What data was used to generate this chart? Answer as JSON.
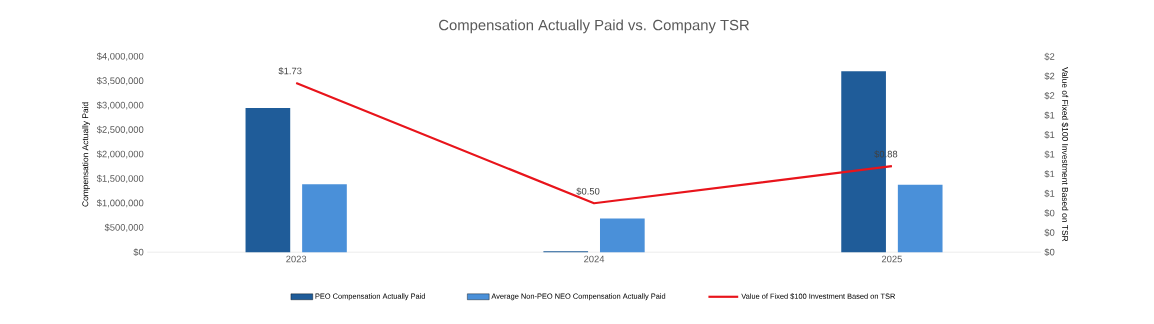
{
  "chart_data": {
    "type": "bar",
    "title": "Compensation Actually Paid vs. Company TSR",
    "ylabel": "Compensation Actually Paid",
    "y2label": "Value of Fixed $100 Investment Based on TSR",
    "categories": [
      "2023",
      "2024",
      "2025"
    ],
    "series": [
      {
        "name": "PEO Compensation Actually Paid",
        "color": "#1f5c99",
        "values": [
          2950000,
          20000,
          3700000
        ]
      },
      {
        "name": "Average Non-PEO NEO Compensation Actually Paid",
        "color": "#4a90d9",
        "values": [
          1390000,
          690000,
          1380000
        ]
      },
      {
        "name": "Value of Fixed $100 Investment Based on TSR",
        "type": "line",
        "axis": "y2",
        "color": "#e8141b",
        "values": [
          1.73,
          0.5,
          0.88
        ],
        "value_labels": [
          "$1.73",
          "$0.50",
          "$0.88"
        ]
      }
    ],
    "ylim": [
      0,
      4000000
    ],
    "yticks": [
      {
        "value": 0,
        "label": "$0"
      },
      {
        "value": 500000,
        "label": "$500,000"
      },
      {
        "value": 1000000,
        "label": "$1,000,000"
      },
      {
        "value": 1500000,
        "label": "$1,500,000"
      },
      {
        "value": 2000000,
        "label": "$2,000,000"
      },
      {
        "value": 2500000,
        "label": "$2,500,000"
      },
      {
        "value": 3000000,
        "label": "$3,000,000"
      },
      {
        "value": 3500000,
        "label": "$3,500,000"
      },
      {
        "value": 4000000,
        "label": "$4,000,000"
      }
    ],
    "y2lim": [
      0,
      2
    ],
    "y2ticks": [
      {
        "value": 0,
        "label": "$0"
      },
      {
        "value": 0.2,
        "label": "$0"
      },
      {
        "value": 0.4,
        "label": "$0"
      },
      {
        "value": 0.6,
        "label": "$1"
      },
      {
        "value": 0.8,
        "label": "$1"
      },
      {
        "value": 1.0,
        "label": "$1"
      },
      {
        "value": 1.2,
        "label": "$1"
      },
      {
        "value": 1.4,
        "label": "$1"
      },
      {
        "value": 1.6,
        "label": "$2"
      },
      {
        "value": 1.8,
        "label": "$2"
      },
      {
        "value": 2.0,
        "label": "$2"
      }
    ],
    "legend": "bottom"
  }
}
